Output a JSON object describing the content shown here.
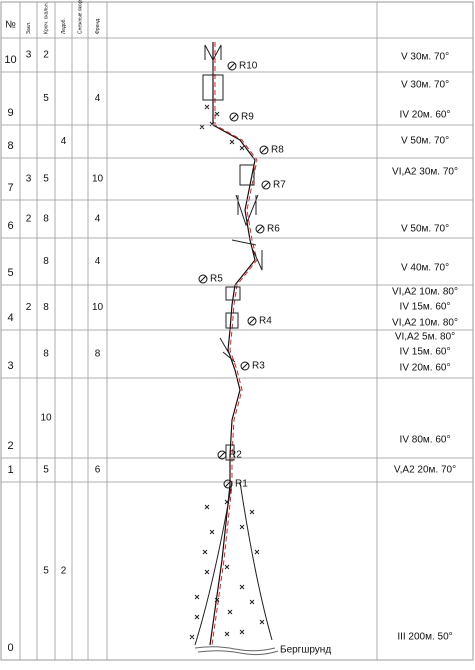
{
  "table": {
    "headers": [
      "№",
      "Закл.",
      "Крюч. скальн.",
      "Ледоб.",
      "Снежные якоря",
      "Френд."
    ],
    "rows": [
      {
        "number": 10,
        "bolts": 3,
        "pitons": 2,
        "anchor": "R10",
        "pitch": [
          "V  30м. 70°"
        ]
      },
      {
        "number": 9,
        "pitons": 5,
        "friends": 4,
        "anchor": "R9",
        "pitch": [
          "V  30м. 70°",
          "IV  20м. 60°"
        ]
      },
      {
        "number": 8,
        "ice_screws": 4,
        "anchor": "R8",
        "pitch": [
          "V  50м. 70°"
        ]
      },
      {
        "number": 7,
        "bolts": 3,
        "pitons": 5,
        "friends": 10,
        "anchor": "R7",
        "pitch": [
          "VI,A2  30м. 70°"
        ]
      },
      {
        "number": 6,
        "bolts": 2,
        "pitons": 8,
        "friends": 4,
        "anchor": "R6",
        "pitch": [
          "V  50м. 70°"
        ]
      },
      {
        "number": 5,
        "pitons": 8,
        "friends": 4,
        "anchor": "R5",
        "pitch": [
          "V  40м. 70°"
        ]
      },
      {
        "number": 4,
        "bolts": 2,
        "pitons": 8,
        "friends": 10,
        "anchor": "R4",
        "pitch": [
          "VI,A2  10м. 80°",
          "IV  15м. 60°",
          "VI,A2  10м. 80°"
        ]
      },
      {
        "number": 3,
        "pitons": 8,
        "friends": 8,
        "anchor": "R3",
        "pitch": [
          "VI,A2  5м. 80°",
          "IV  15м. 60°",
          "IV  20м. 60°"
        ]
      },
      {
        "number": 2,
        "pitons": 10,
        "anchor": "R2",
        "pitch": [
          "IV  80м. 60°"
        ]
      },
      {
        "number": 1,
        "pitons": 5,
        "friends": 6,
        "anchor": "R1",
        "pitch": [
          "V,A2  20м. 70°"
        ]
      },
      {
        "number": 0,
        "pitons": 5,
        "ice_screws": 2,
        "pitch": [
          "III  200м.  50°"
        ]
      }
    ],
    "bergschrund": "Бергшрунд"
  }
}
